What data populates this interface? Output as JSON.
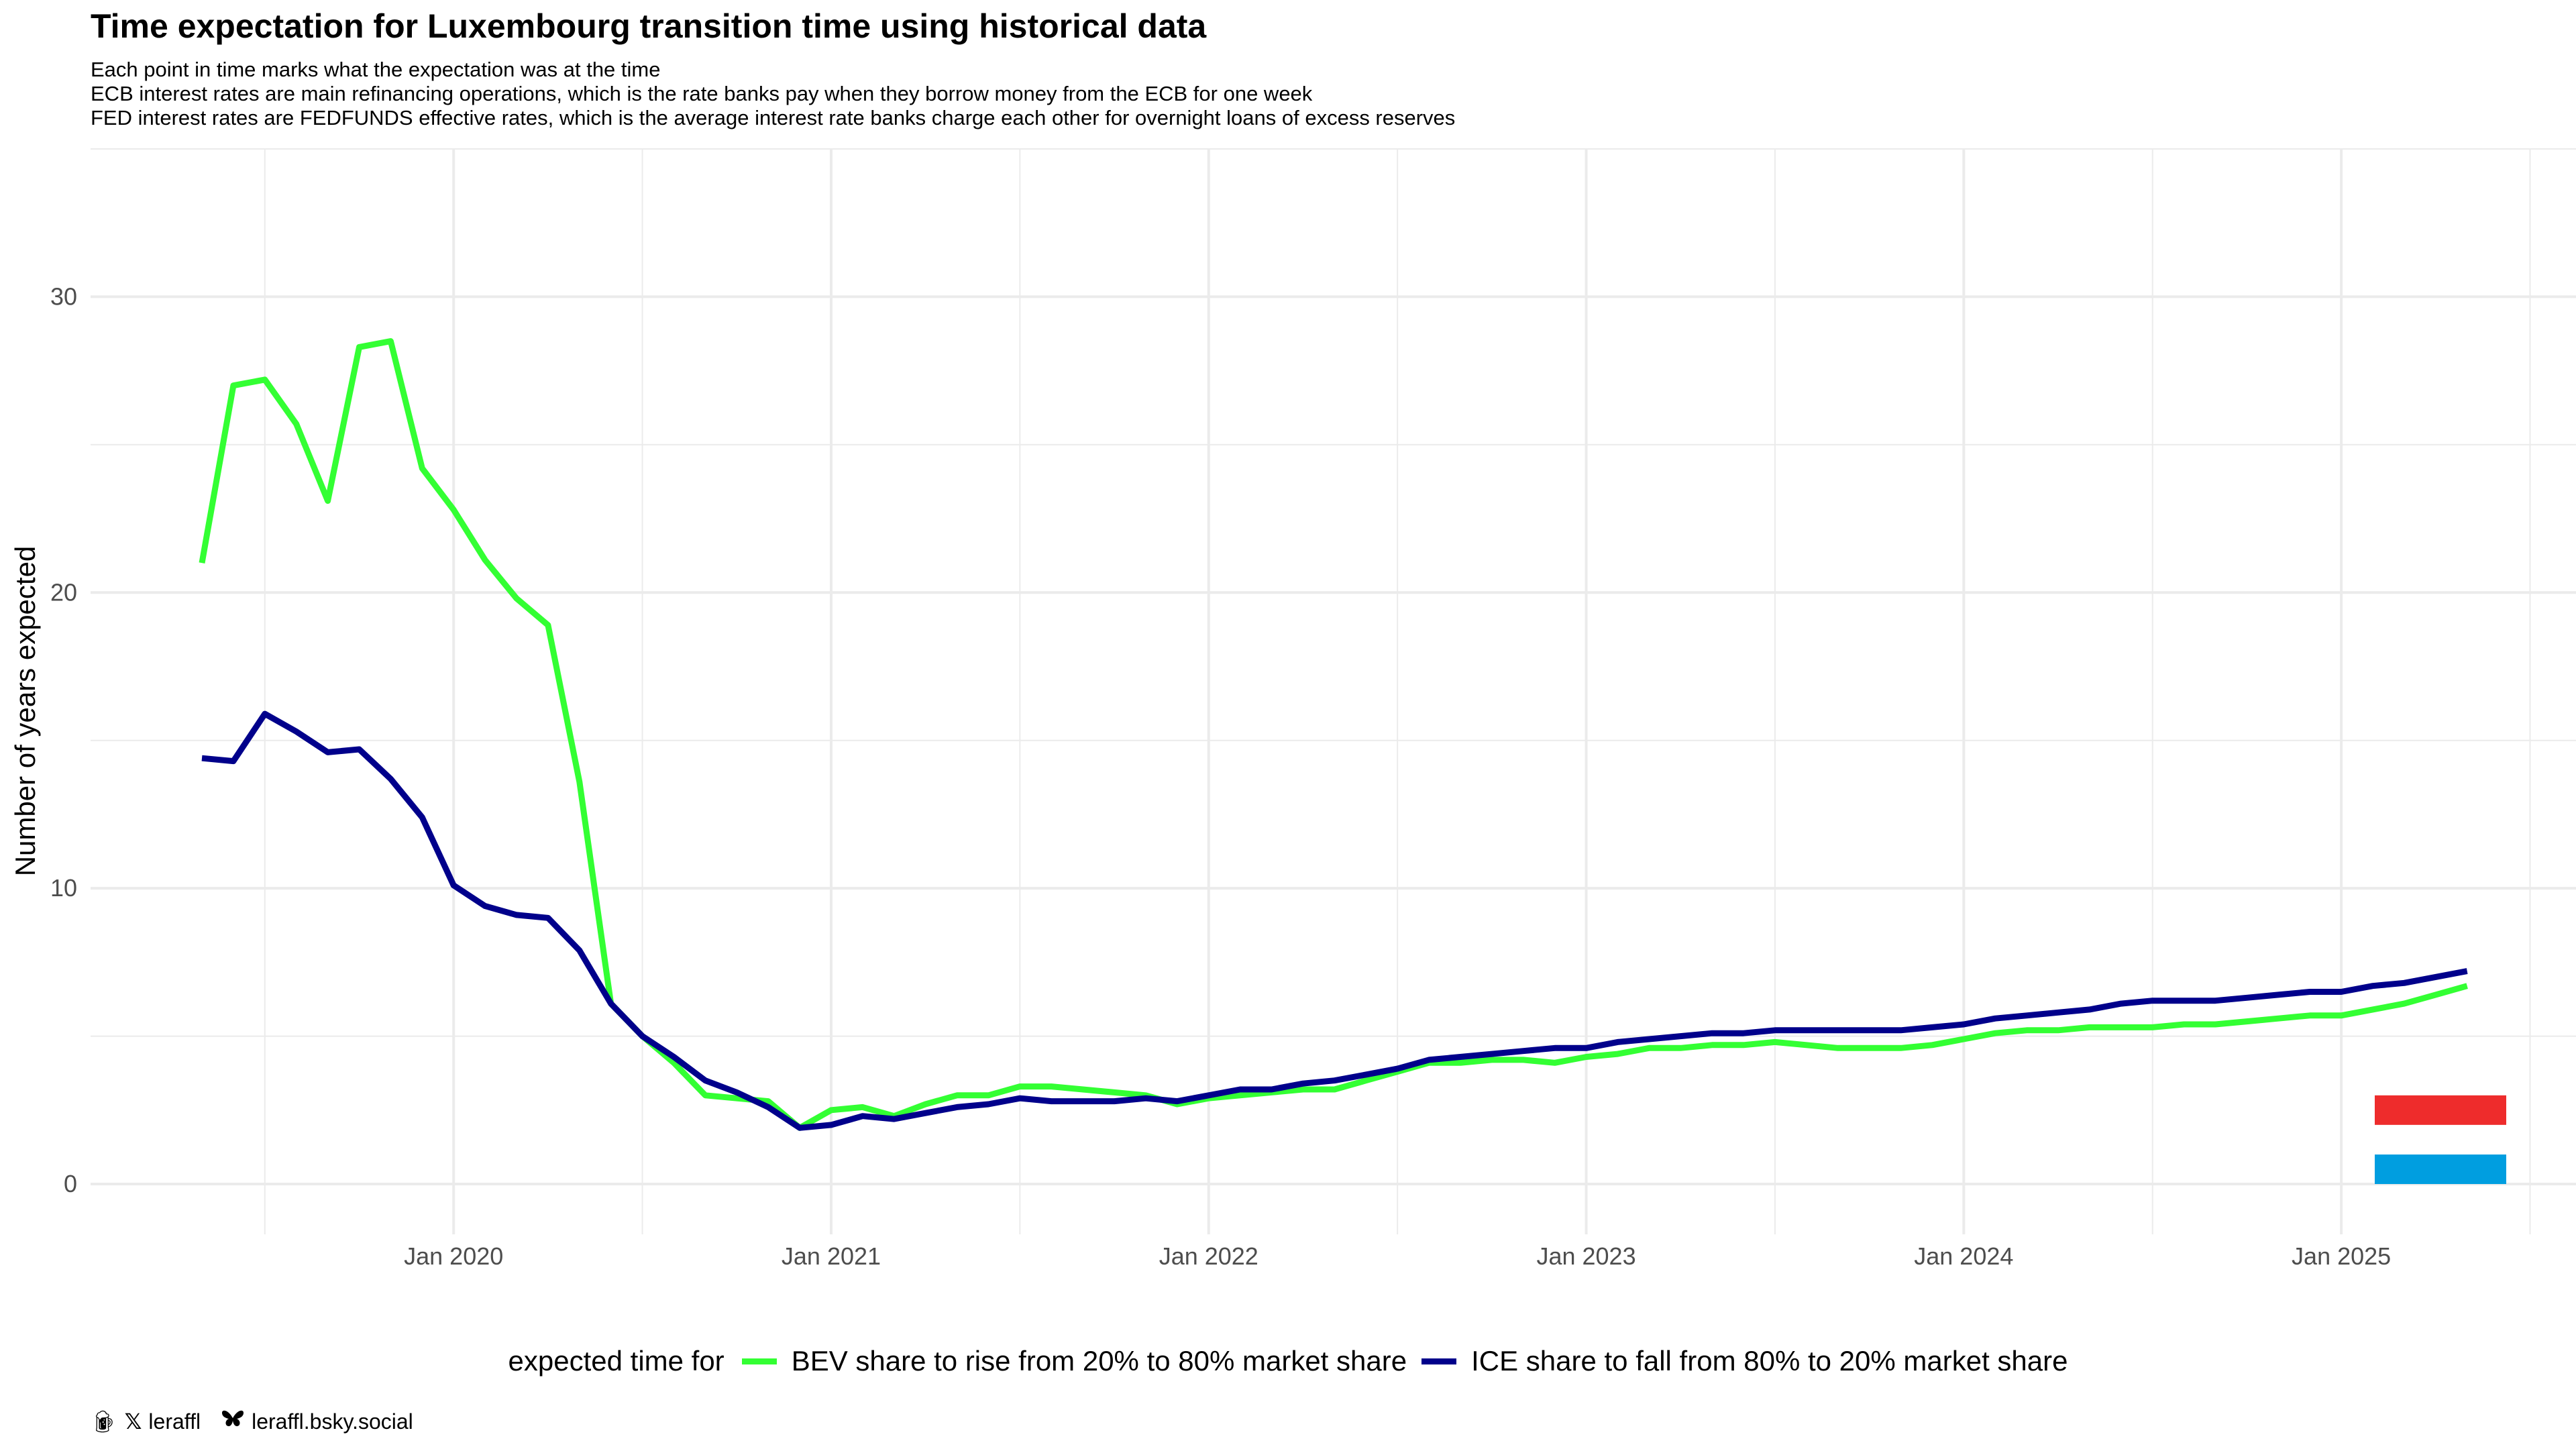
{
  "header": {
    "title": "Time expectation for Luxembourg transition time using historical data",
    "subtitle_lines": [
      "Each point in time marks what the expectation was at the time",
      "ECB interest rates are main refinancing operations, which is the rate banks pay when they borrow money from the ECB for one week",
      "FED interest rates are FEDFUNDS effective rates, which is the average interest rate banks charge each other for overnight loans of excess reserves"
    ]
  },
  "legend": {
    "title": "expected time for",
    "items": [
      {
        "label": "BEV share to rise from 20% to 80% market share",
        "color": "#33ff33"
      },
      {
        "label": "ICE share to fall from 80% to 20% market share",
        "color": "#00008b"
      }
    ]
  },
  "credits": {
    "handle": "leraffl",
    "bluesky": "leraffl.bsky.social",
    "icons": [
      "beer-icon",
      "x-logo-icon",
      "butterfly-icon"
    ]
  },
  "chart_data": {
    "type": "line",
    "title": "Time expectation for Luxembourg transition time using historical data",
    "xlabel": "",
    "ylabel": "Number of years expected",
    "x_tick_labels": [
      "Jan 2020",
      "Jan 2021",
      "Jan 2022",
      "Jan 2023",
      "Jan 2024",
      "Jan 2025"
    ],
    "y_ticks": [
      0,
      10,
      20,
      30
    ],
    "ylim": [
      -1.7,
      35
    ],
    "xlim": [
      "2019-01-15",
      "2025-08-15"
    ],
    "grid": true,
    "legend_position": "bottom",
    "x": [
      "2019-05",
      "2019-06",
      "2019-07",
      "2019-08",
      "2019-09",
      "2019-10",
      "2019-11",
      "2019-12",
      "2020-01",
      "2020-02",
      "2020-03",
      "2020-04",
      "2020-05",
      "2020-06",
      "2020-07",
      "2020-08",
      "2020-09",
      "2020-10",
      "2020-11",
      "2020-12",
      "2021-01",
      "2021-02",
      "2021-03",
      "2021-04",
      "2021-05",
      "2021-06",
      "2021-07",
      "2021-08",
      "2021-09",
      "2021-10",
      "2021-11",
      "2021-12",
      "2022-01",
      "2022-02",
      "2022-03",
      "2022-04",
      "2022-05",
      "2022-06",
      "2022-07",
      "2022-08",
      "2022-09",
      "2022-10",
      "2022-11",
      "2022-12",
      "2023-01",
      "2023-02",
      "2023-03",
      "2023-04",
      "2023-05",
      "2023-06",
      "2023-07",
      "2023-08",
      "2023-09",
      "2023-10",
      "2023-11",
      "2023-12",
      "2024-01",
      "2024-02",
      "2024-03",
      "2024-04",
      "2024-05",
      "2024-06",
      "2024-07",
      "2024-08",
      "2024-09",
      "2024-10",
      "2024-11",
      "2024-12",
      "2025-01",
      "2025-02",
      "2025-03",
      "2025-04",
      "2025-05"
    ],
    "series": [
      {
        "name": "BEV share to rise from 20% to 80% market share",
        "color": "#33ff33",
        "values": [
          21.0,
          27.0,
          27.2,
          25.7,
          23.1,
          28.3,
          28.5,
          24.2,
          22.8,
          21.1,
          19.8,
          18.9,
          13.6,
          6.1,
          5.0,
          4.1,
          3.0,
          2.9,
          2.8,
          1.9,
          2.5,
          2.6,
          2.3,
          2.7,
          3.0,
          3.0,
          3.3,
          3.3,
          3.2,
          3.1,
          3.0,
          2.7,
          2.9,
          3.0,
          3.1,
          3.2,
          3.2,
          3.5,
          3.8,
          4.1,
          4.1,
          4.2,
          4.2,
          4.1,
          4.3,
          4.4,
          4.6,
          4.6,
          4.7,
          4.7,
          4.8,
          4.7,
          4.6,
          4.6,
          4.6,
          4.7,
          4.9,
          5.1,
          5.2,
          5.2,
          5.3,
          5.3,
          5.3,
          5.4,
          5.4,
          5.5,
          5.6,
          5.7,
          5.7,
          5.9,
          6.1,
          6.4,
          6.7
        ]
      },
      {
        "name": "ICE share to fall from 80% to 20% market share",
        "color": "#00008b",
        "values": [
          14.4,
          14.3,
          15.9,
          15.3,
          14.6,
          14.7,
          13.7,
          12.4,
          10.1,
          9.4,
          9.1,
          9.0,
          7.9,
          6.1,
          5.0,
          4.3,
          3.5,
          3.1,
          2.6,
          1.9,
          2.0,
          2.3,
          2.2,
          2.4,
          2.6,
          2.7,
          2.9,
          2.8,
          2.8,
          2.8,
          2.9,
          2.8,
          3.0,
          3.2,
          3.2,
          3.4,
          3.5,
          3.7,
          3.9,
          4.2,
          4.3,
          4.4,
          4.5,
          4.6,
          4.6,
          4.8,
          4.9,
          5.0,
          5.1,
          5.1,
          5.2,
          5.2,
          5.2,
          5.2,
          5.2,
          5.3,
          5.4,
          5.6,
          5.7,
          5.8,
          5.9,
          6.1,
          6.2,
          6.2,
          6.2,
          6.3,
          6.4,
          6.5,
          6.5,
          6.7,
          6.8,
          7.0,
          7.2
        ]
      }
    ],
    "marker_bars": [
      {
        "name": "red-marker",
        "color": "#ee2c2c",
        "value": 2.5
      },
      {
        "name": "blue-marker",
        "color": "#009ee0",
        "value": 0.5
      }
    ]
  }
}
